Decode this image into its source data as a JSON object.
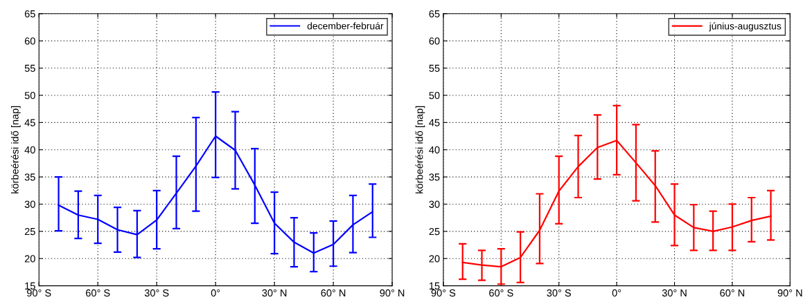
{
  "chart_data": [
    {
      "type": "line",
      "ylabel": "körbeérési idő [nap]",
      "x": [
        -80,
        -70,
        -60,
        -50,
        -40,
        -30,
        -20,
        -10,
        0,
        10,
        20,
        30,
        40,
        50,
        60,
        70,
        80
      ],
      "series": [
        {
          "name": "december-február",
          "color": "#0000ff",
          "values": [
            29.8,
            28.0,
            27.2,
            25.3,
            24.4,
            27.1,
            32.0,
            37.0,
            42.5,
            39.9,
            33.5,
            26.5,
            23.0,
            21.0,
            22.6,
            26.2,
            28.6
          ],
          "errors": [
            [
              25.1,
              35.0
            ],
            [
              23.7,
              32.4
            ],
            [
              22.8,
              31.6
            ],
            [
              21.2,
              29.4
            ],
            [
              20.2,
              28.8
            ],
            [
              21.8,
              32.5
            ],
            [
              25.5,
              38.8
            ],
            [
              28.7,
              45.9
            ],
            [
              34.9,
              50.6
            ],
            [
              32.8,
              47.0
            ],
            [
              26.5,
              40.2
            ],
            [
              20.9,
              32.2
            ],
            [
              18.5,
              27.5
            ],
            [
              17.6,
              24.7
            ],
            [
              18.6,
              26.9
            ],
            [
              21.1,
              31.6
            ],
            [
              23.9,
              33.7
            ]
          ]
        }
      ],
      "xlim": [
        -90,
        90
      ],
      "xticks": [
        {
          "value": -90,
          "label": "90° S"
        },
        {
          "value": -60,
          "label": "60° S"
        },
        {
          "value": -30,
          "label": "30° S"
        },
        {
          "value": 0,
          "label": "0°"
        },
        {
          "value": 30,
          "label": "30° N"
        },
        {
          "value": 60,
          "label": "60° N"
        },
        {
          "value": 90,
          "label": "90° N"
        }
      ],
      "ylim": [
        15,
        65
      ],
      "yticks": [
        15,
        20,
        25,
        30,
        35,
        40,
        45,
        50,
        55,
        60,
        65
      ],
      "grid": true,
      "legend": "top right",
      "line_style": "solid",
      "marker": "none"
    },
    {
      "type": "line",
      "ylabel": "körbeérési idő [nap]",
      "x": [
        -80,
        -70,
        -60,
        -50,
        -40,
        -30,
        -20,
        -10,
        0,
        10,
        20,
        30,
        40,
        50,
        60,
        70,
        80
      ],
      "series": [
        {
          "name": "június-augusztus",
          "color": "#ff0000",
          "values": [
            19.3,
            18.8,
            18.5,
            20.2,
            25.2,
            32.4,
            36.9,
            40.4,
            41.7,
            37.6,
            33.4,
            28.0,
            25.7,
            25.0,
            25.8,
            27.0,
            27.8
          ],
          "errors": [
            [
              16.2,
              22.7
            ],
            [
              16.0,
              21.5
            ],
            [
              15.3,
              21.8
            ],
            [
              15.6,
              24.9
            ],
            [
              19.1,
              31.9
            ],
            [
              26.4,
              38.8
            ],
            [
              31.2,
              42.6
            ],
            [
              34.6,
              46.4
            ],
            [
              35.4,
              48.1
            ],
            [
              30.6,
              44.6
            ],
            [
              26.7,
              39.8
            ],
            [
              22.4,
              33.7
            ],
            [
              21.5,
              29.9
            ],
            [
              21.5,
              28.7
            ],
            [
              21.5,
              30.0
            ],
            [
              23.1,
              31.2
            ],
            [
              23.4,
              32.5
            ]
          ]
        }
      ],
      "xlim": [
        -90,
        90
      ],
      "xticks": [
        {
          "value": -90,
          "label": "90° S"
        },
        {
          "value": -60,
          "label": "60° S"
        },
        {
          "value": -30,
          "label": "30° S"
        },
        {
          "value": 0,
          "label": "0°"
        },
        {
          "value": 30,
          "label": "30° N"
        },
        {
          "value": 60,
          "label": "60° N"
        },
        {
          "value": 90,
          "label": "90° N"
        }
      ],
      "ylim": [
        15,
        65
      ],
      "yticks": [
        15,
        20,
        25,
        30,
        35,
        40,
        45,
        50,
        55,
        60,
        65
      ],
      "grid": true,
      "legend": "top right",
      "line_style": "solid",
      "marker": "none"
    }
  ]
}
